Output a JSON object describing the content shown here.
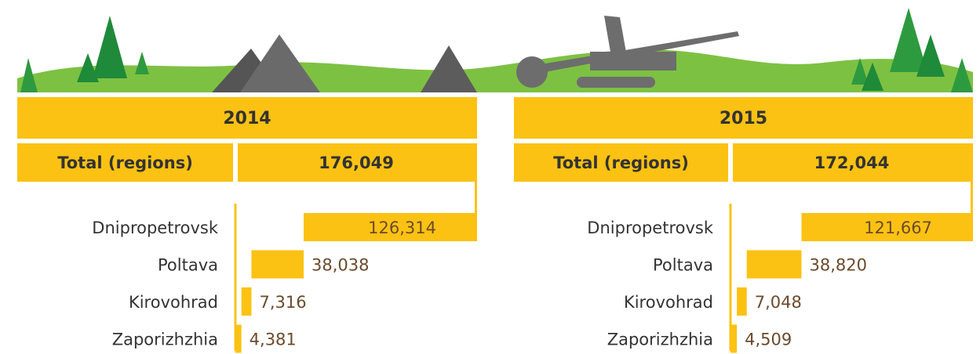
{
  "chart_data": [
    {
      "type": "waterfall",
      "title": "2014",
      "total_label": "Total (regions)",
      "total": 176049,
      "total_value_label": "176,049",
      "categories": [
        "Dnipropetrovsk",
        "Poltava",
        "Kirovohrad",
        "Zaporizhzhia"
      ],
      "values": [
        126314,
        38038,
        7316,
        4381
      ],
      "value_labels": [
        "126,314",
        "38,038",
        "7,316",
        "4,381"
      ],
      "color": "#fbc213"
    },
    {
      "type": "waterfall",
      "title": "2015",
      "total_label": "Total (regions)",
      "total": 172044,
      "total_value_label": "172,044",
      "categories": [
        "Dnipropetrovsk",
        "Poltava",
        "Kirovohrad",
        "Zaporizhzhia"
      ],
      "values": [
        121667,
        38820,
        7048,
        4509
      ],
      "value_labels": [
        "121,667",
        "38,820",
        "7,048",
        "4,509"
      ],
      "color": "#fbc213"
    }
  ]
}
